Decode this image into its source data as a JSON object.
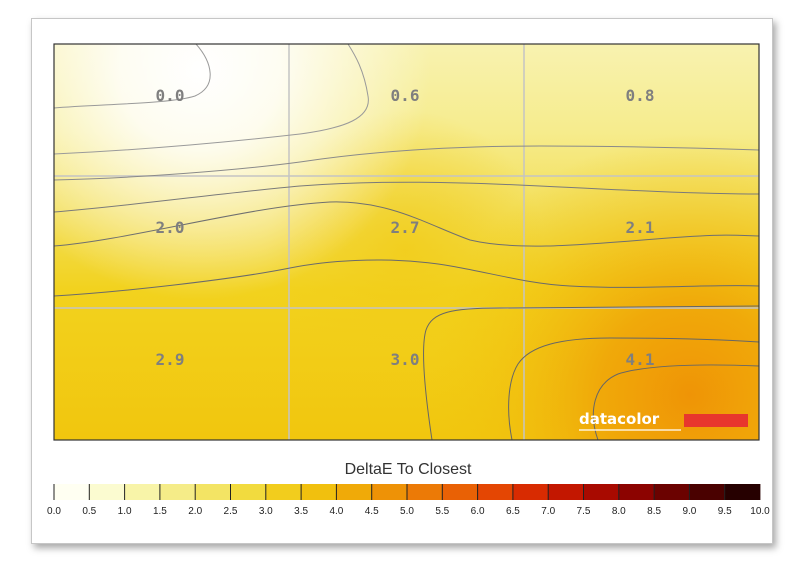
{
  "chart_data": {
    "type": "heatmap",
    "rows": 3,
    "cols": 3,
    "values": [
      [
        0.0,
        0.6,
        0.8
      ],
      [
        2.0,
        2.7,
        2.1
      ],
      [
        2.9,
        3.0,
        4.1
      ]
    ],
    "cell_labels": [
      [
        "0.0",
        "0.6",
        "0.8"
      ],
      [
        "2.0",
        "2.7",
        "2.1"
      ],
      [
        "2.9",
        "3.0",
        "4.1"
      ]
    ],
    "contour_lines": true,
    "grid": true,
    "colorbar": {
      "title": "DeltaE To Closest",
      "min": 0.0,
      "max": 10.0,
      "step": 0.5,
      "tick_labels": [
        "0.0",
        "0.5",
        "1.0",
        "1.5",
        "2.0",
        "2.5",
        "3.0",
        "3.5",
        "4.0",
        "4.5",
        "5.0",
        "5.5",
        "6.0",
        "6.5",
        "7.0",
        "7.5",
        "8.0",
        "8.5",
        "9.0",
        "9.5",
        "10.0"
      ],
      "colors": [
        "#fffff2",
        "#fbfbd0",
        "#f8f4a8",
        "#f5ec88",
        "#f3e464",
        "#f2db3e",
        "#f2cd1d",
        "#f1c00e",
        "#f0aa08",
        "#ee9206",
        "#ec7a06",
        "#e96105",
        "#e44603",
        "#d82b01",
        "#c31700",
        "#a80a00",
        "#8c0300",
        "#6b0200",
        "#4a0100",
        "#260000"
      ],
      "placement": "bottom"
    },
    "logo": {
      "text": "datacolor",
      "bar_color": "#e8362d"
    }
  }
}
